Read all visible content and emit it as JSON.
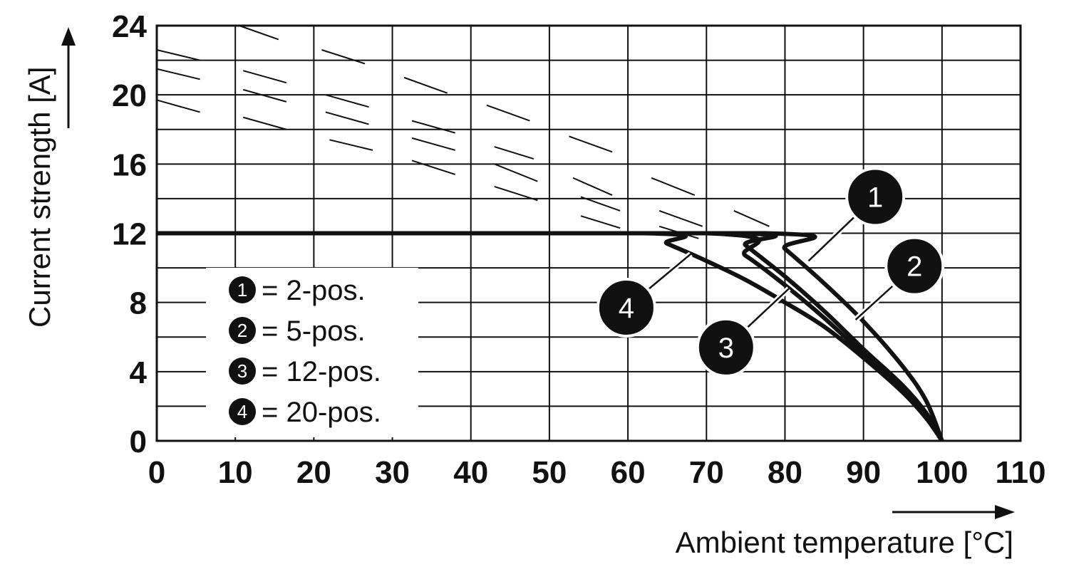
{
  "chart_data": {
    "type": "line",
    "xlabel": "Ambient temperature [°C]",
    "ylabel": "Current strength [A]",
    "xlim": [
      0,
      110
    ],
    "ylim": [
      0,
      24
    ],
    "x_ticks": [
      0,
      10,
      20,
      30,
      40,
      50,
      60,
      70,
      80,
      90,
      100,
      110
    ],
    "y_ticks": [
      0,
      4,
      8,
      12,
      16,
      20,
      24
    ],
    "grid": true,
    "legend_position": "bottom-left",
    "legend": [
      {
        "id": "1",
        "text": "= 2-pos."
      },
      {
        "id": "2",
        "text": "= 5-pos."
      },
      {
        "id": "3",
        "text": "= 12-pos."
      },
      {
        "id": "4",
        "text": "= 20-pos."
      }
    ],
    "series": [
      {
        "id": "1",
        "x": [
          0,
          77.5,
          80,
          85,
          90,
          95,
          98,
          100
        ],
        "y": [
          12,
          12,
          11.1,
          9.1,
          6.9,
          4.3,
          2.3,
          0
        ]
      },
      {
        "id": "2",
        "x": [
          0,
          73,
          75,
          80,
          85,
          90,
          95,
          98,
          100
        ],
        "y": [
          12,
          12,
          11.3,
          9.5,
          7.5,
          5.3,
          3.2,
          1.6,
          0
        ]
      },
      {
        "id": "3",
        "x": [
          0,
          70,
          75,
          80,
          85,
          90,
          95,
          98,
          100
        ],
        "y": [
          12,
          12,
          10.7,
          9.0,
          7.1,
          5.0,
          2.9,
          1.4,
          0
        ]
      },
      {
        "id": "4",
        "x": [
          0,
          62,
          65,
          70,
          75,
          80,
          85,
          90,
          95,
          98,
          100
        ],
        "y": [
          12,
          12,
          11.4,
          10.4,
          9.3,
          8.0,
          6.6,
          4.8,
          2.8,
          1.3,
          0
        ]
      }
    ],
    "callouts": [
      {
        "id": "1",
        "x": 91.5,
        "y": 14.1,
        "target_x": 83,
        "target_y": 10.4
      },
      {
        "id": "2",
        "x": 96.5,
        "y": 10.1,
        "target_x": 89,
        "target_y": 7.0
      },
      {
        "id": "3",
        "x": 72.5,
        "y": 5.4,
        "target_x": 80.5,
        "target_y": 8.8
      },
      {
        "id": "4",
        "x": 59.8,
        "y": 7.7,
        "target_x": 68,
        "target_y": 10.8
      }
    ]
  }
}
